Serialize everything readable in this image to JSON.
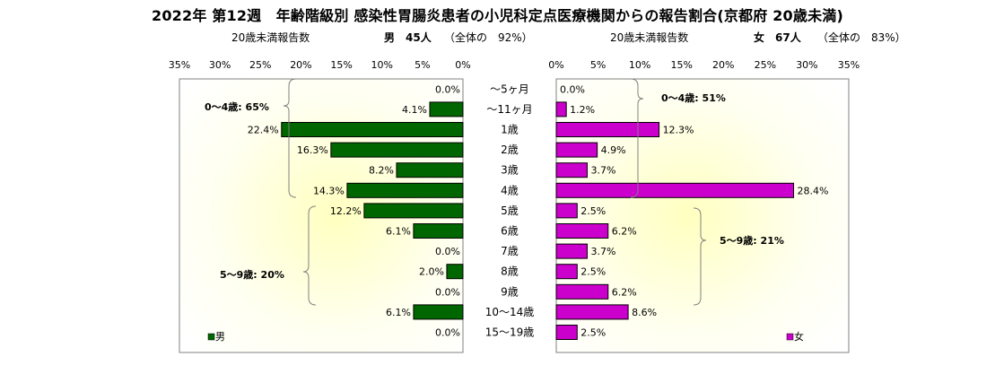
{
  "header": {
    "title": "2022年 第12週　年齢階級別 感染性胃腸炎患者の小児科定点医療機関からの報告割合(京都府 20歳未満)",
    "left_caption": "20歳未満報告数",
    "left_sex": "男　45人",
    "left_share": "（全体の　92%）",
    "right_caption": "20歳未満報告数",
    "right_sex": "女　67人",
    "right_share": "（全体の　83%）"
  },
  "chart_data": {
    "type": "bar",
    "orientation": "horizontal-butterfly",
    "categories": [
      "～5ヶ月",
      "～11ヶ月",
      "1歳",
      "2歳",
      "3歳",
      "4歳",
      "5歳",
      "6歳",
      "7歳",
      "8歳",
      "9歳",
      "10～14歳",
      "15～19歳"
    ],
    "series": [
      {
        "name": "男",
        "color": "#006600",
        "values": [
          0.0,
          4.1,
          22.4,
          16.3,
          8.2,
          14.3,
          12.2,
          6.1,
          0.0,
          2.0,
          0.0,
          6.1,
          0.0
        ],
        "labels": [
          "0.0%",
          "4.1%",
          "22.4%",
          "16.3%",
          "8.2%",
          "14.3%",
          "12.2%",
          "6.1%",
          "0.0%",
          "2.0%",
          "0.0%",
          "6.1%",
          "0.0%"
        ]
      },
      {
        "name": "女",
        "color": "#cc00cc",
        "values": [
          0.0,
          1.2,
          12.3,
          4.9,
          3.7,
          28.4,
          2.5,
          6.2,
          3.7,
          2.5,
          6.2,
          8.6,
          2.5
        ],
        "labels": [
          "0.0%",
          "1.2%",
          "12.3%",
          "4.9%",
          "3.7%",
          "28.4%",
          "2.5%",
          "6.2%",
          "3.7%",
          "2.5%",
          "6.2%",
          "8.6%",
          "2.5%"
        ]
      }
    ],
    "left_ticks": [
      "35%",
      "30%",
      "25%",
      "20%",
      "15%",
      "10%",
      "5%",
      "0%"
    ],
    "right_ticks": [
      "0%",
      "5%",
      "10%",
      "15%",
      "20%",
      "25%",
      "30%",
      "35%"
    ],
    "xlim": [
      0,
      35
    ],
    "annotations": {
      "male_0_4": "0～4歳: 65%",
      "male_5_9": "5～9歳: 20%",
      "female_0_4": "0～4歳: 51%",
      "female_5_9": "5～9歳: 21%"
    },
    "legend": {
      "male": "男",
      "female": "女"
    },
    "plot_background": "radial yellow glow",
    "grid": false
  }
}
